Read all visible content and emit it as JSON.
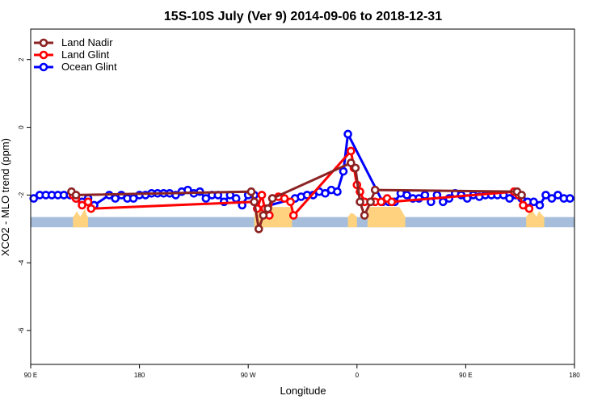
{
  "chart_data": {
    "type": "line",
    "title": "15S-10S July (Ver 9)   2014-09-06 to 2018-12-31",
    "xlabel": "Longitude",
    "ylabel": "XCO2 - MLO trend (ppm)",
    "xlim": [
      90,
      450
    ],
    "ylim": [
      -7.0,
      2.9
    ],
    "x_ticks": [
      {
        "value": 90,
        "label": "90 E"
      },
      {
        "value": 162,
        "label": "180"
      },
      {
        "value": 234,
        "label": "90 W"
      },
      {
        "value": 306,
        "label": "0"
      },
      {
        "value": 378,
        "label": "90 E"
      },
      {
        "value": 450,
        "label": "180"
      }
    ],
    "y_ticks": [
      {
        "value": 2,
        "label": "2"
      },
      {
        "value": 0,
        "label": "0"
      },
      {
        "value": -2,
        "label": "-2"
      },
      {
        "value": -4,
        "label": "-4"
      },
      {
        "value": -6,
        "label": "-6"
      }
    ],
    "legend_position": "top-left",
    "band": {
      "y_top": -2.65,
      "y_bottom": -2.95,
      "color": "#a6bddb"
    },
    "land_fill_color": "#ffd27f",
    "land_segments": [
      {
        "x_start": 118,
        "x_end": 128,
        "profile": [
          [
            118,
            0.0
          ],
          [
            119.5,
            0.3
          ],
          [
            120.5,
            0.6
          ],
          [
            121.5,
            0.3
          ],
          [
            123,
            0.05
          ],
          [
            124.5,
            0.5
          ],
          [
            126,
            0.8
          ],
          [
            127,
            0.2
          ],
          [
            128,
            0.0
          ]
        ]
      },
      {
        "x_start": 238,
        "x_end": 263,
        "profile": [
          [
            238,
            0.0
          ],
          [
            239,
            1.0
          ],
          [
            262,
            1.0
          ],
          [
            263,
            0.0
          ]
        ]
      },
      {
        "x_start": 300,
        "x_end": 306,
        "profile": [
          [
            300,
            0.0
          ],
          [
            302,
            0.4
          ],
          [
            304,
            0.3
          ],
          [
            306,
            0.0
          ]
        ]
      },
      {
        "x_start": 313,
        "x_end": 338,
        "profile": [
          [
            313,
            0.0
          ],
          [
            314,
            1.0
          ],
          [
            334,
            1.0
          ],
          [
            336,
            0.5
          ],
          [
            338,
            0.0
          ]
        ]
      },
      {
        "x_start": 418,
        "x_end": 430,
        "profile": [
          [
            418,
            0.0
          ],
          [
            420,
            0.4
          ],
          [
            422,
            0.7
          ],
          [
            423.5,
            0.3
          ],
          [
            425,
            0.05
          ],
          [
            426.5,
            0.6
          ],
          [
            428,
            0.3
          ],
          [
            430,
            0.0
          ]
        ]
      }
    ],
    "series": [
      {
        "name": "Ocean Glint",
        "color": "#0000ff",
        "points": [
          [
            92,
            -2.1
          ],
          [
            96,
            -2.0
          ],
          [
            100,
            -2.0
          ],
          [
            104,
            -2.0
          ],
          [
            108,
            -2.0
          ],
          [
            112,
            -2.0
          ],
          [
            116,
            -2.0
          ],
          [
            120,
            -2.1
          ],
          [
            124,
            -2.2
          ],
          [
            128,
            -2.1
          ],
          [
            132,
            -2.3
          ],
          [
            142,
            -2.0
          ],
          [
            146,
            -2.1
          ],
          [
            150,
            -2.0
          ],
          [
            154,
            -2.1
          ],
          [
            158,
            -2.1
          ],
          [
            162,
            -2.0
          ],
          [
            166,
            -2.0
          ],
          [
            170,
            -1.95
          ],
          [
            174,
            -1.95
          ],
          [
            178,
            -1.95
          ],
          [
            182,
            -1.95
          ],
          [
            186,
            -2.0
          ],
          [
            190,
            -1.9
          ],
          [
            194,
            -1.85
          ],
          [
            198,
            -1.95
          ],
          [
            202,
            -1.9
          ],
          [
            206,
            -2.1
          ],
          [
            210,
            -2.0
          ],
          [
            214,
            -2.0
          ],
          [
            218,
            -2.2
          ],
          [
            222,
            -2.0
          ],
          [
            226,
            -2.1
          ],
          [
            230,
            -2.3
          ],
          [
            234,
            -2.0
          ],
          [
            238,
            -2.0
          ],
          [
            240,
            -2.4
          ],
          [
            265,
            -2.1
          ],
          [
            269,
            -2.05
          ],
          [
            273,
            -2.0
          ],
          [
            277,
            -2.0
          ],
          [
            281,
            -1.9
          ],
          [
            285,
            -1.95
          ],
          [
            289,
            -1.85
          ],
          [
            293,
            -1.9
          ],
          [
            297,
            -1.3
          ],
          [
            300,
            -0.2
          ],
          [
            323,
            -2.2
          ],
          [
            327,
            -2.2
          ],
          [
            331,
            -2.2
          ],
          [
            335,
            -1.95
          ],
          [
            339,
            -2.0
          ],
          [
            343,
            -2.1
          ],
          [
            347,
            -2.1
          ],
          [
            351,
            -2.0
          ],
          [
            355,
            -2.2
          ],
          [
            359,
            -2.0
          ],
          [
            363,
            -2.2
          ],
          [
            367,
            -2.1
          ],
          [
            371,
            -1.95
          ],
          [
            375,
            -2.0
          ],
          [
            379,
            -2.1
          ],
          [
            383,
            -2.0
          ],
          [
            387,
            -2.05
          ],
          [
            391,
            -2.0
          ],
          [
            395,
            -2.0
          ],
          [
            399,
            -2.0
          ],
          [
            403,
            -2.0
          ],
          [
            407,
            -2.1
          ],
          [
            411,
            -2.0
          ],
          [
            415,
            -2.1
          ],
          [
            419,
            -2.2
          ],
          [
            423,
            -2.2
          ],
          [
            427,
            -2.3
          ],
          [
            431,
            -2.0
          ],
          [
            435,
            -2.1
          ],
          [
            439,
            -2.0
          ],
          [
            443,
            -2.1
          ],
          [
            447,
            -2.1
          ]
        ]
      },
      {
        "name": "Land Glint",
        "color": "#ff0000",
        "points": [
          [
            118,
            -2.0
          ],
          [
            120,
            -2.1
          ],
          [
            124,
            -2.3
          ],
          [
            128,
            -2.2
          ],
          [
            130,
            -2.4
          ],
          [
            238,
            -2.2
          ],
          [
            240,
            -2.4
          ],
          [
            243,
            -2.0
          ],
          [
            245,
            -2.4
          ],
          [
            248,
            -2.6
          ],
          [
            250,
            -2.1
          ],
          [
            254,
            -2.05
          ],
          [
            258,
            -2.1
          ],
          [
            262,
            -2.2
          ],
          [
            264,
            -2.6
          ],
          [
            302,
            -0.7
          ],
          [
            304,
            -1.2
          ],
          [
            306,
            -1.7
          ],
          [
            308,
            -1.9
          ],
          [
            311,
            -2.2
          ],
          [
            315,
            -2.2
          ],
          [
            318,
            -2.2
          ],
          [
            322,
            -2.2
          ],
          [
            326,
            -2.1
          ],
          [
            329,
            -2.2
          ],
          [
            410,
            -1.9
          ],
          [
            413,
            -2.0
          ],
          [
            416,
            -2.3
          ],
          [
            420,
            -2.4
          ]
        ]
      },
      {
        "name": "Land Nadir",
        "color": "#8b2323",
        "points": [
          [
            117,
            -1.9
          ],
          [
            120,
            -2.0
          ],
          [
            236,
            -1.9
          ],
          [
            238,
            -2.2
          ],
          [
            241,
            -3.0
          ],
          [
            244,
            -2.6
          ],
          [
            247,
            -2.4
          ],
          [
            250,
            -2.1
          ],
          [
            302,
            -1.05
          ],
          [
            305,
            -1.2
          ],
          [
            308,
            -2.2
          ],
          [
            311,
            -2.6
          ],
          [
            315,
            -2.2
          ],
          [
            318,
            -1.85
          ],
          [
            412,
            -1.9
          ],
          [
            415,
            -2.0
          ]
        ]
      }
    ],
    "legend": [
      {
        "name": "Land Nadir",
        "color": "#8b2323"
      },
      {
        "name": "Land Glint",
        "color": "#ff0000"
      },
      {
        "name": "Ocean Glint",
        "color": "#0000ff"
      }
    ]
  }
}
